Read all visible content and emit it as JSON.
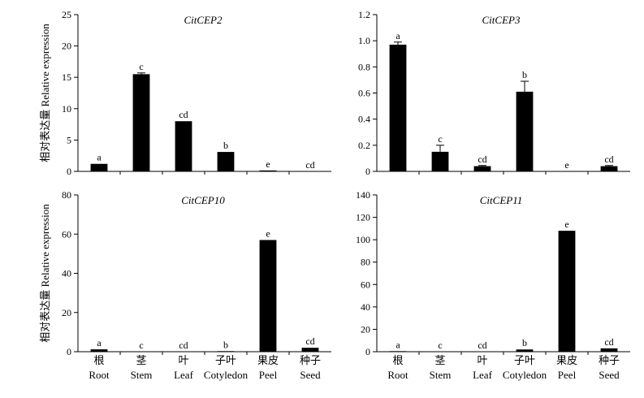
{
  "y_axis_label": "相对表达量 Relative expression",
  "categories": [
    {
      "cn": "根",
      "en": "Root"
    },
    {
      "cn": "茎",
      "en": "Stem"
    },
    {
      "cn": "叶",
      "en": "Leaf"
    },
    {
      "cn": "子叶",
      "en": "Cotyledon"
    },
    {
      "cn": "果皮",
      "en": "Peel"
    },
    {
      "cn": "种子",
      "en": "Seed"
    }
  ],
  "chart_data": [
    {
      "type": "bar",
      "title": "CitCEP2",
      "categories": [
        "Root",
        "Stem",
        "Leaf",
        "Cotyledon",
        "Peel",
        "Seed"
      ],
      "values": [
        1.2,
        15.5,
        8.0,
        3.1,
        0.15,
        0.0
      ],
      "errors": [
        0.0,
        0.2,
        0.0,
        0.0,
        0.0,
        0.0
      ],
      "significance": [
        "a",
        "c",
        "cd",
        "b",
        "e",
        "cd"
      ],
      "ylim": [
        0,
        25
      ],
      "yticks": [
        0,
        5,
        10,
        15,
        20,
        25
      ],
      "ytick_labels": [
        "0",
        "5",
        "10",
        "15",
        "20",
        "25"
      ],
      "ylabel": "相对表达量 Relative expression"
    },
    {
      "type": "bar",
      "title": "CitCEP3",
      "categories": [
        "Root",
        "Stem",
        "Leaf",
        "Cotyledon",
        "Peel",
        "Seed"
      ],
      "values": [
        0.97,
        0.15,
        0.04,
        0.61,
        0.0,
        0.04
      ],
      "errors": [
        0.02,
        0.05,
        0.005,
        0.08,
        0.0,
        0.005
      ],
      "significance": [
        "a",
        "c",
        "cd",
        "b",
        "e",
        "cd"
      ],
      "ylim": [
        0,
        1.2
      ],
      "yticks": [
        0,
        0.2,
        0.4,
        0.6,
        0.8,
        1.0,
        1.2
      ],
      "ytick_labels": [
        "0",
        "0.2",
        "0.4",
        "0.6",
        "0.8",
        "1.0",
        "1.2"
      ],
      "ylabel": ""
    },
    {
      "type": "bar",
      "title": "CitCEP10",
      "categories": [
        "Root",
        "Stem",
        "Leaf",
        "Cotyledon",
        "Peel",
        "Seed"
      ],
      "values": [
        1.2,
        0.0,
        0.0,
        0.3,
        57.0,
        2.0
      ],
      "errors": [
        0.0,
        0.0,
        0.0,
        0.0,
        0.0,
        0.0
      ],
      "significance": [
        "a",
        "c",
        "cd",
        "b",
        "e",
        "cd"
      ],
      "ylim": [
        0,
        80
      ],
      "yticks": [
        0,
        20,
        40,
        60,
        80
      ],
      "ytick_labels": [
        "0",
        "20",
        "40",
        "60",
        "80"
      ],
      "ylabel": "相对表达量 Relative expression"
    },
    {
      "type": "bar",
      "title": "CitCEP11",
      "categories": [
        "Root",
        "Stem",
        "Leaf",
        "Cotyledon",
        "Peel",
        "Seed"
      ],
      "values": [
        0.5,
        0.0,
        0.0,
        2.0,
        108.0,
        3.0
      ],
      "errors": [
        0.0,
        0.0,
        0.0,
        0.0,
        0.0,
        0.0
      ],
      "significance": [
        "a",
        "c",
        "cd",
        "b",
        "e",
        "cd"
      ],
      "ylim": [
        0,
        140
      ],
      "yticks": [
        0,
        20,
        40,
        60,
        80,
        100,
        120,
        140
      ],
      "ytick_labels": [
        "0",
        "20",
        "40",
        "60",
        "80",
        "100",
        "120",
        "140"
      ],
      "ylabel": ""
    }
  ]
}
